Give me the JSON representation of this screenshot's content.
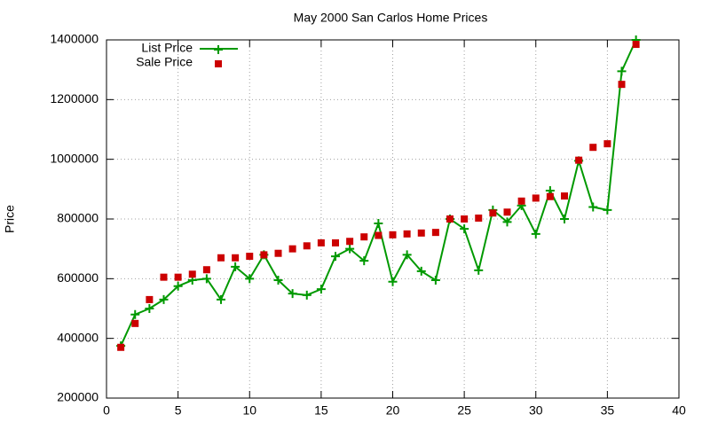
{
  "chart_data": {
    "type": "line",
    "title": "May 2000 San Carlos Home Prices",
    "ylabel": "Price",
    "x": [
      1,
      2,
      3,
      4,
      5,
      6,
      7,
      8,
      9,
      10,
      11,
      12,
      13,
      14,
      15,
      16,
      17,
      18,
      19,
      20,
      21,
      22,
      23,
      24,
      25,
      26,
      27,
      28,
      29,
      30,
      31,
      32,
      33,
      34,
      35,
      36,
      37
    ],
    "series": [
      {
        "name": "List Price",
        "color": "#009900",
        "lines": true,
        "marker": "plus",
        "values": [
          375000,
          480000,
          500000,
          530000,
          575000,
          595000,
          600000,
          530000,
          640000,
          600000,
          680000,
          595000,
          550000,
          545000,
          565000,
          675000,
          700000,
          660000,
          785000,
          590000,
          680000,
          625000,
          595000,
          800000,
          767000,
          628000,
          830000,
          790000,
          845000,
          750000,
          895000,
          800000,
          995000,
          840000,
          830000,
          1295000,
          1400000
        ]
      },
      {
        "name": "Sale Price",
        "color": "#cc0000",
        "lines": false,
        "marker": "square",
        "values": [
          370000,
          450000,
          530000,
          605000,
          605000,
          615000,
          630000,
          670000,
          670000,
          675000,
          680000,
          685000,
          700000,
          710000,
          720000,
          720000,
          725000,
          740000,
          745000,
          747000,
          750000,
          753000,
          755000,
          800000,
          800000,
          803000,
          820000,
          823000,
          860000,
          870000,
          875000,
          877000,
          997000,
          1040000,
          1052000,
          1251000,
          1385000
        ]
      }
    ],
    "xlim": [
      0,
      40
    ],
    "xticks": [
      0,
      5,
      10,
      15,
      20,
      25,
      30,
      35,
      40
    ],
    "ylim": [
      200000,
      1400000
    ],
    "yticks": [
      200000,
      400000,
      600000,
      800000,
      1000000,
      1200000,
      1400000
    ],
    "grid": true,
    "legend": "top-left"
  }
}
